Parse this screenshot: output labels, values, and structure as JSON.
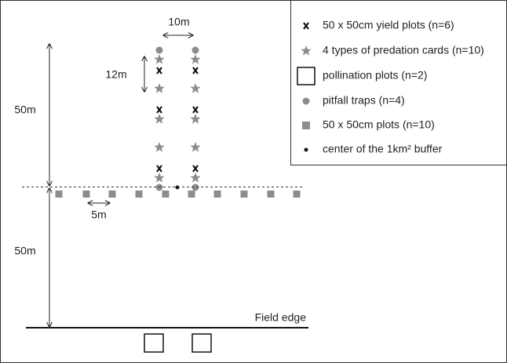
{
  "labels": {
    "spacing_x": "10m",
    "spacing_y": "12m",
    "distance_top": "50m",
    "distance_bottom": "50m",
    "plot_spacing": "5m",
    "field_edge": "Field edge"
  },
  "legend": [
    "50 x 50cm yield plots (n=6)",
    "4 types of predation cards (n=10)",
    "pollination plots (n=2)",
    "pitfall traps (n=4)",
    "50 x 50cm plots (n=10)",
    "center of the 1km² buffer"
  ]
}
